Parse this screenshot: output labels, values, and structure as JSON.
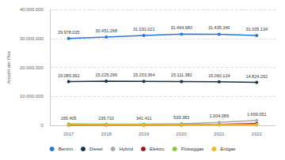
{
  "chart_data": {
    "type": "line",
    "y_label": "Anzahl der Pkw",
    "categories": [
      "2017",
      "2018",
      "2019",
      "2020",
      "2021",
      "2022"
    ],
    "ylim": [
      0,
      40000000
    ],
    "yticks": [
      0,
      {
        "value": 10000000,
        "label": "10.000.000"
      },
      {
        "value": 20000000,
        "label": "20.000.000"
      },
      {
        "value": 30000000,
        "label": "30.000.000"
      },
      {
        "value": 40000000,
        "label": "40.000.000"
      }
    ],
    "grid": true,
    "legend": "bottom",
    "data_labels": true,
    "marker": "circle",
    "series": [
      {
        "name": "Benzin",
        "color": "#2876dd",
        "values": [
          29978035,
          30451268,
          31031021,
          31464680,
          31435340,
          31005134
        ],
        "value_labels": [
          "29.978.035",
          "30.451.268",
          "31.031.021",
          "31.464.680",
          "31.435.340",
          "31.005.134"
        ]
      },
      {
        "name": "Diesel",
        "color": "#17304c",
        "values": [
          15089392,
          15225296,
          15153364,
          15111382,
          15060124,
          14824262
        ],
        "value_labels": [
          "15.089.392",
          "15.225.296",
          "15.153.364",
          "15.111.382",
          "15.060.124",
          "14.824.262"
        ]
      },
      {
        "name": "Hybrid",
        "color": "#a9a9a9",
        "values": [
          165405,
          236710,
          341411,
          539383,
          1004089,
          1669051
        ],
        "value_labels": [
          "165.405",
          "236.710",
          "341.411",
          "539.383",
          "1.004.089",
          "1.669.051"
        ]
      },
      {
        "name": "Elektro",
        "color": "#a0151b",
        "values": [
          34022,
          53861,
          83175,
          136617,
          309083,
          618460
        ]
      },
      {
        "name": "Flüssiggas",
        "color": "#8cc63f",
        "values": [
          475711,
          421283,
          395592,
          371472,
          351889,
          340296
        ]
      },
      {
        "name": "Erdgas",
        "color": "#f5b324",
        "values": [
          77187,
          75459,
          80776,
          82198,
          80638,
          76801
        ]
      }
    ]
  }
}
